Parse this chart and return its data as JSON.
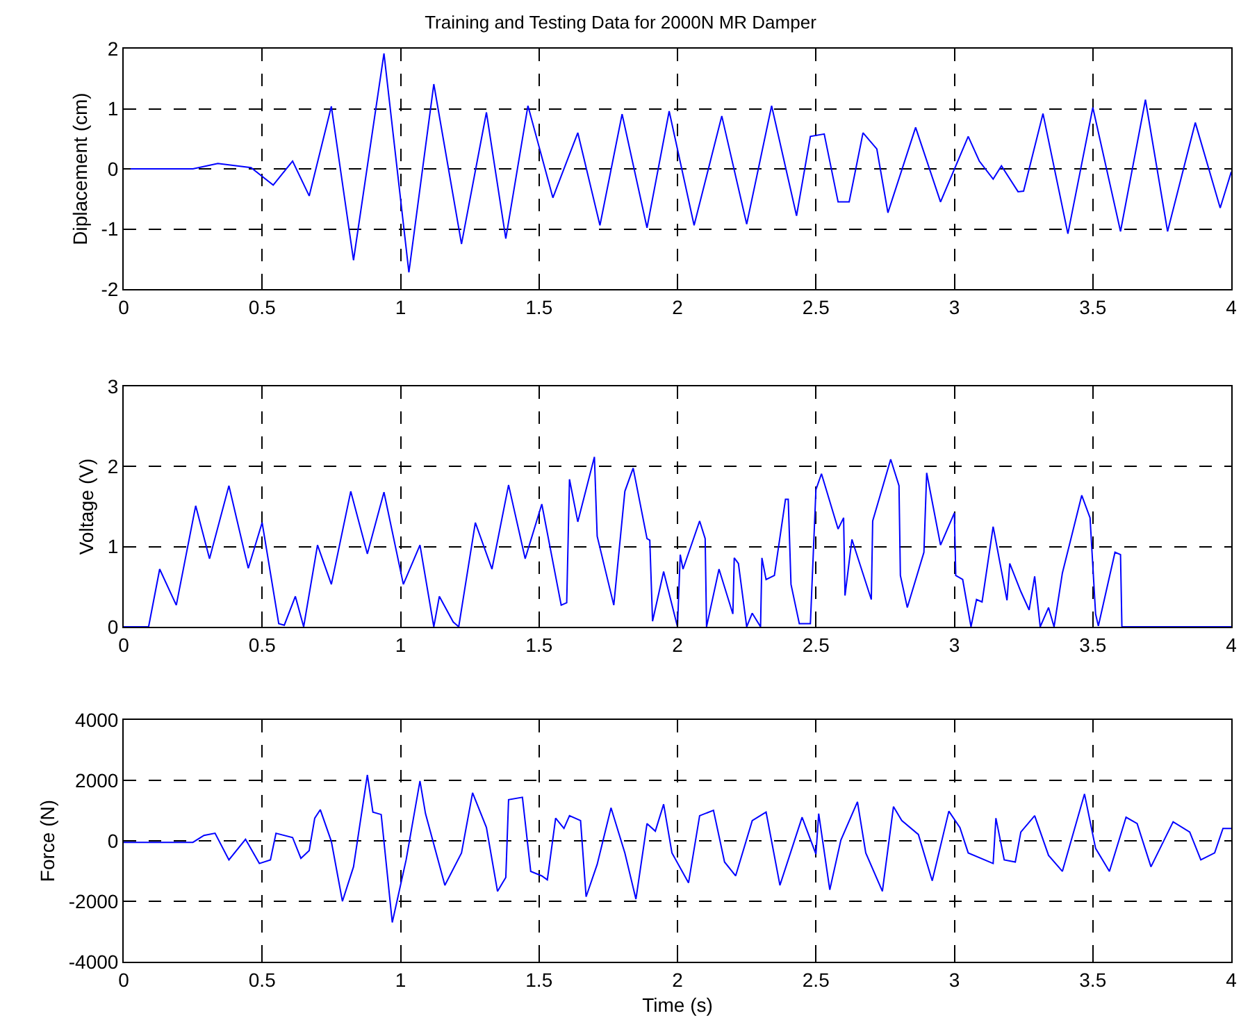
{
  "chart_data": [
    {
      "type": "line",
      "title": "Training and Testing Data for 2000N MR Damper",
      "ylabel": "Diplacement (cm)",
      "xlim": [
        0,
        4
      ],
      "xticks": [
        0,
        0.5,
        1,
        1.5,
        2,
        2.5,
        3,
        3.5,
        4
      ],
      "ylim": [
        -2,
        2
      ],
      "yticks": [
        -2,
        -1,
        0,
        1,
        2
      ],
      "grid": true,
      "x": [
        0,
        0.25,
        0.34,
        0.46,
        0.54,
        0.61,
        0.67,
        0.75,
        0.83,
        0.94,
        1.03,
        1.12,
        1.22,
        1.31,
        1.38,
        1.46,
        1.55,
        1.64,
        1.72,
        1.8,
        1.89,
        1.97,
        2.06,
        2.16,
        2.25,
        2.34,
        2.43,
        2.48,
        2.53,
        2.58,
        2.62,
        2.67,
        2.72,
        2.76,
        2.86,
        2.95,
        3.05,
        3.09,
        3.14,
        3.17,
        3.23,
        3.25,
        3.32,
        3.41,
        3.5,
        3.6,
        3.69,
        3.77,
        3.87,
        3.96,
        4
      ],
      "series": [
        {
          "color": "#0000ff",
          "values": [
            0,
            0,
            0.09,
            0.02,
            -0.27,
            0.13,
            -0.45,
            1.04,
            -1.52,
            1.92,
            -1.72,
            1.41,
            -1.25,
            0.94,
            -1.16,
            1.05,
            -0.48,
            0.6,
            -0.94,
            0.91,
            -0.98,
            0.96,
            -0.94,
            0.88,
            -0.92,
            1.05,
            -0.78,
            0.54,
            0.58,
            -0.55,
            -0.55,
            0.6,
            0.33,
            -0.73,
            0.69,
            -0.55,
            0.54,
            0.13,
            -0.17,
            0.05,
            -0.38,
            -0.37,
            0.92,
            -1.08,
            1.02,
            -1.04,
            1.15,
            -1.04,
            0.77,
            -0.65,
            -0.05
          ]
        }
      ]
    },
    {
      "type": "line",
      "ylabel": "Voltage (V)",
      "xlim": [
        0,
        4
      ],
      "xticks": [
        0,
        0.5,
        1,
        1.5,
        2,
        2.5,
        3,
        3.5,
        4
      ],
      "ylim": [
        0,
        3
      ],
      "yticks": [
        0,
        1,
        2,
        3
      ],
      "grid": true,
      "x": [
        0,
        0.09,
        0.13,
        0.19,
        0.26,
        0.31,
        0.38,
        0.45,
        0.5,
        0.56,
        0.58,
        0.62,
        0.65,
        0.7,
        0.75,
        0.82,
        0.88,
        0.94,
        1.01,
        1.07,
        1.12,
        1.14,
        1.19,
        1.21,
        1.27,
        1.33,
        1.39,
        1.45,
        1.51,
        1.58,
        1.6,
        1.61,
        1.64,
        1.7,
        1.71,
        1.77,
        1.81,
        1.84,
        1.89,
        1.9,
        1.91,
        1.95,
        2,
        2.01,
        2.02,
        2.08,
        2.1,
        2.105,
        2.15,
        2.2,
        2.205,
        2.22,
        2.25,
        2.27,
        2.3,
        2.305,
        2.32,
        2.35,
        2.39,
        2.4,
        2.41,
        2.44,
        2.48,
        2.5,
        2.52,
        2.58,
        2.6,
        2.605,
        2.63,
        2.7,
        2.705,
        2.77,
        2.8,
        2.805,
        2.83,
        2.89,
        2.9,
        2.95,
        3,
        3.005,
        3.03,
        3.06,
        3.08,
        3.1,
        3.14,
        3.19,
        3.2,
        3.24,
        3.27,
        3.29,
        3.31,
        3.34,
        3.36,
        3.39,
        3.46,
        3.49,
        3.51,
        3.52,
        3.58,
        3.6,
        3.605,
        4
      ],
      "series": [
        {
          "color": "#0000ff",
          "values": [
            0,
            0,
            0.72,
            0.27,
            1.51,
            0.85,
            1.76,
            0.73,
            1.3,
            0.04,
            0.02,
            0.38,
            0,
            1.02,
            0.53,
            1.69,
            0.91,
            1.68,
            0.53,
            1.02,
            0,
            0.38,
            0.06,
            0,
            1.3,
            0.72,
            1.77,
            0.85,
            1.53,
            0.27,
            0.3,
            1.84,
            1.31,
            2.12,
            1.13,
            0.27,
            1.69,
            1.98,
            1.1,
            1.08,
            0.07,
            0.69,
            0,
            0.9,
            0.72,
            1.32,
            1.1,
            0,
            0.72,
            0.16,
            0.86,
            0.79,
            0,
            0.17,
            0,
            0.86,
            0.59,
            0.64,
            1.59,
            1.59,
            0.53,
            0.04,
            0.04,
            1.71,
            1.91,
            1.22,
            1.36,
            0.39,
            1.09,
            0.34,
            1.32,
            2.09,
            1.76,
            0.64,
            0.24,
            0.93,
            1.92,
            1.02,
            1.42,
            0.64,
            0.59,
            0,
            0.34,
            0.31,
            1.25,
            0.33,
            0.79,
            0.44,
            0.21,
            0.63,
            0,
            0.24,
            0,
            0.67,
            1.64,
            1.36,
            0.16,
            0.01,
            0.93,
            0.9,
            0,
            0
          ]
        }
      ]
    },
    {
      "type": "line",
      "xlabel": "Time (s)",
      "ylabel": "Force (N)",
      "xlim": [
        0,
        4
      ],
      "xticks": [
        0,
        0.5,
        1,
        1.5,
        2,
        2.5,
        3,
        3.5,
        4
      ],
      "ylim": [
        -4000,
        4000
      ],
      "yticks": [
        -4000,
        -2000,
        0,
        2000,
        4000
      ],
      "grid": true,
      "x": [
        0,
        0.25,
        0.29,
        0.33,
        0.38,
        0.44,
        0.49,
        0.53,
        0.55,
        0.61,
        0.64,
        0.67,
        0.69,
        0.71,
        0.75,
        0.79,
        0.83,
        0.88,
        0.9,
        0.93,
        0.97,
        1.02,
        1.07,
        1.09,
        1.16,
        1.22,
        1.26,
        1.31,
        1.35,
        1.38,
        1.39,
        1.44,
        1.47,
        1.51,
        1.53,
        1.56,
        1.59,
        1.61,
        1.65,
        1.67,
        1.71,
        1.76,
        1.81,
        1.85,
        1.89,
        1.92,
        1.95,
        1.98,
        2.04,
        2.08,
        2.13,
        2.17,
        2.21,
        2.27,
        2.32,
        2.37,
        2.45,
        2.5,
        2.51,
        2.55,
        2.59,
        2.65,
        2.68,
        2.74,
        2.78,
        2.81,
        2.87,
        2.92,
        2.98,
        3.02,
        3.05,
        3.14,
        3.15,
        3.18,
        3.22,
        3.24,
        3.29,
        3.34,
        3.39,
        3.47,
        3.51,
        3.56,
        3.62,
        3.66,
        3.71,
        3.79,
        3.85,
        3.89,
        3.94,
        3.97,
        4
      ],
      "series": [
        {
          "color": "#0000ff",
          "values": [
            -50,
            -50,
            180,
            250,
            -630,
            50,
            -750,
            -630,
            250,
            110,
            -580,
            -320,
            750,
            1030,
            -20,
            -2000,
            -860,
            2180,
            950,
            870,
            -2700,
            -630,
            1980,
            900,
            -1470,
            -400,
            1590,
            440,
            -1670,
            -1210,
            1360,
            1440,
            -1010,
            -1160,
            -1290,
            750,
            410,
            830,
            670,
            -1850,
            -780,
            1090,
            -400,
            -1930,
            570,
            320,
            1210,
            -400,
            -1390,
            830,
            1010,
            -700,
            -1160,
            670,
            950,
            -1470,
            780,
            -440,
            900,
            -1620,
            20,
            1290,
            -400,
            -1670,
            1130,
            670,
            210,
            -1320,
            980,
            440,
            -400,
            -750,
            750,
            -630,
            -700,
            290,
            830,
            -480,
            -1010,
            1550,
            -250,
            -1010,
            780,
            570,
            -860,
            630,
            290,
            -630,
            -400,
            410,
            410
          ]
        }
      ]
    }
  ]
}
